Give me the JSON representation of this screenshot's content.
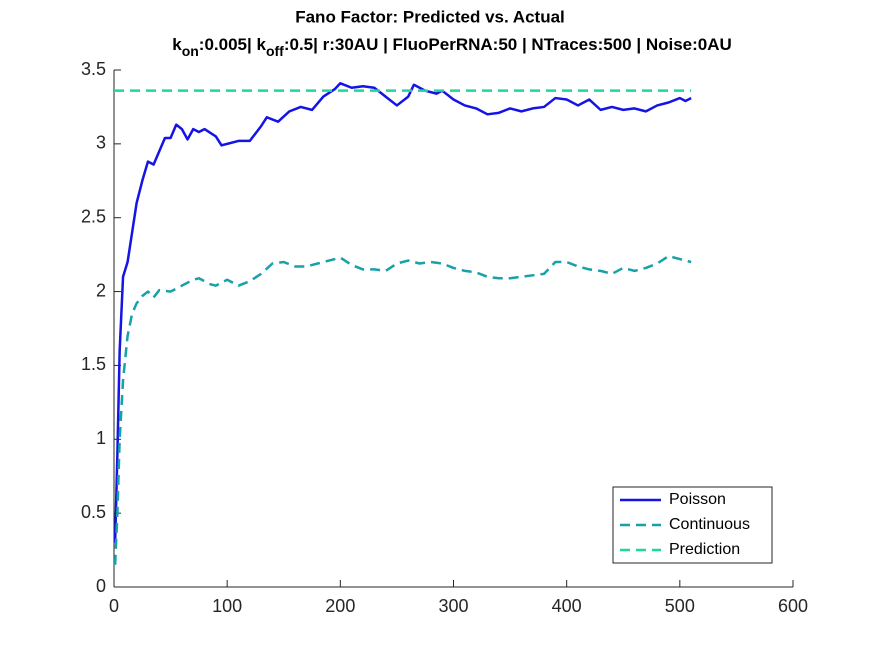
{
  "chart_data": {
    "type": "line",
    "title": "Fano Factor: Predicted vs. Actual",
    "subtitle": [
      {
        "text": "k"
      },
      {
        "text": "on",
        "sub": true
      },
      {
        "text": ":0.005| k"
      },
      {
        "text": "off",
        "sub": true
      },
      {
        "text": ":0.5| r:30AU | FluoPerRNA:50 | NTraces:500 | Noise:0AU"
      }
    ],
    "xlim": [
      0,
      600
    ],
    "xticks": [
      0,
      100,
      200,
      300,
      400,
      500,
      600
    ],
    "ylim": [
      0,
      3.5
    ],
    "yticks": [
      0,
      0.5,
      1,
      1.5,
      2,
      2.5,
      3,
      3.5
    ],
    "grid": false,
    "legend": "lower right",
    "series": [
      {
        "name": "Poisson",
        "color": "#1414e6",
        "dash": false,
        "x": [
          1,
          3,
          5,
          8,
          12,
          16,
          20,
          25,
          30,
          35,
          40,
          45,
          50,
          55,
          60,
          65,
          70,
          75,
          80,
          90,
          95,
          100,
          110,
          120,
          130,
          135,
          145,
          155,
          165,
          175,
          185,
          195,
          200,
          210,
          220,
          230,
          240,
          250,
          260,
          265,
          275,
          285,
          290,
          300,
          310,
          320,
          330,
          340,
          350,
          360,
          370,
          380,
          390,
          400,
          410,
          420,
          430,
          440,
          450,
          460,
          470,
          480,
          490,
          500,
          505,
          510
        ],
        "values": [
          0.3,
          0.9,
          1.6,
          2.1,
          2.2,
          2.4,
          2.6,
          2.75,
          2.88,
          2.86,
          2.95,
          3.04,
          3.04,
          3.13,
          3.1,
          3.03,
          3.1,
          3.08,
          3.1,
          3.05,
          2.99,
          3.0,
          3.02,
          3.02,
          3.12,
          3.18,
          3.15,
          3.22,
          3.25,
          3.23,
          3.32,
          3.37,
          3.41,
          3.38,
          3.39,
          3.38,
          3.32,
          3.26,
          3.32,
          3.4,
          3.36,
          3.34,
          3.36,
          3.3,
          3.26,
          3.24,
          3.2,
          3.21,
          3.24,
          3.22,
          3.24,
          3.25,
          3.31,
          3.3,
          3.26,
          3.3,
          3.23,
          3.25,
          3.23,
          3.24,
          3.22,
          3.26,
          3.28,
          3.31,
          3.29,
          3.31
        ]
      },
      {
        "name": "Continuous",
        "color": "#17a1aa",
        "dash": true,
        "x": [
          1,
          3,
          5,
          8,
          12,
          16,
          20,
          25,
          30,
          35,
          40,
          50,
          60,
          70,
          75,
          85,
          90,
          100,
          110,
          120,
          130,
          140,
          150,
          160,
          170,
          180,
          190,
          200,
          210,
          220,
          230,
          240,
          250,
          260,
          270,
          280,
          290,
          300,
          310,
          320,
          330,
          340,
          350,
          360,
          370,
          380,
          390,
          400,
          410,
          420,
          430,
          440,
          450,
          460,
          470,
          480,
          490,
          500,
          510
        ],
        "values": [
          0.15,
          0.5,
          1.0,
          1.4,
          1.7,
          1.85,
          1.92,
          1.97,
          2.0,
          1.96,
          2.01,
          2.0,
          2.04,
          2.08,
          2.09,
          2.05,
          2.04,
          2.08,
          2.04,
          2.07,
          2.12,
          2.19,
          2.2,
          2.17,
          2.17,
          2.19,
          2.21,
          2.23,
          2.18,
          2.15,
          2.15,
          2.14,
          2.19,
          2.21,
          2.19,
          2.2,
          2.19,
          2.16,
          2.14,
          2.13,
          2.1,
          2.09,
          2.09,
          2.1,
          2.11,
          2.12,
          2.2,
          2.2,
          2.17,
          2.15,
          2.14,
          2.12,
          2.16,
          2.14,
          2.16,
          2.19,
          2.24,
          2.22,
          2.2
        ]
      },
      {
        "name": "Prediction",
        "color": "#1fd69e",
        "dash": true,
        "x": [
          0,
          510
        ],
        "values": [
          3.36,
          3.36
        ]
      }
    ]
  }
}
